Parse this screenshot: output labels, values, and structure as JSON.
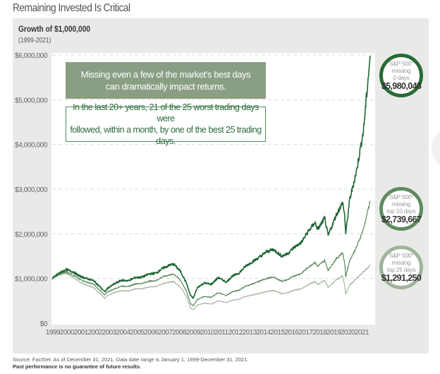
{
  "page_title": "Remaining Invested Is Critical",
  "subtitle": "Growth of $1,000,000",
  "date_range_label": "(1999-2021)",
  "callout_primary": [
    "Missing even a few of the market's best days",
    "can dramatically impact returns."
  ],
  "callout_secondary": [
    "In the last 20+ years, 21 of the 25 worst trading days were",
    "followed, within a month, by one of the best 25 trading days."
  ],
  "end_labels": [
    {
      "lines": [
        "S&P 500°",
        "missing",
        "0 days"
      ],
      "value": "$5,980,048",
      "color": "#276b36"
    },
    {
      "lines": [
        "S&P 500°",
        "missing",
        "top 10 days"
      ],
      "value": "$2,739,667",
      "color": "#5f8a61"
    },
    {
      "lines": [
        "S&P 500°",
        "missing",
        "top 25 days"
      ],
      "value": "$1,291,250",
      "color": "#9fb39b"
    }
  ],
  "footnote_source": "Source: FactSet. As of December 31, 2021. Data date range is January 1, 1999-December 31, 2021.",
  "footnote_disclaimer": "Past performance is no guarantee of future results.",
  "chart_data": {
    "type": "line",
    "title": "Growth of $1,000,000",
    "subtitle": "(1999-2021)",
    "xlabel": "",
    "ylabel": "",
    "ylim": [
      0,
      6000000
    ],
    "xlim": [
      1999,
      2022
    ],
    "y_ticks": [
      0,
      1000000,
      2000000,
      3000000,
      4000000,
      5000000,
      6000000
    ],
    "y_tick_labels": [
      "$0",
      "$1,000,000",
      "$2,000,000",
      "$3,000,000",
      "$4,000,000",
      "$5,000,000",
      "$6,000,000"
    ],
    "x_tick_labels": [
      "1999",
      "2000",
      "2001",
      "2002",
      "2003",
      "2004",
      "2005",
      "2006",
      "2007",
      "2008",
      "2009",
      "2010",
      "2011",
      "2012",
      "2013",
      "2014",
      "2015",
      "2016",
      "2017",
      "2018",
      "2019",
      "2020",
      "2021"
    ],
    "grid": true,
    "x": [
      1999.0,
      1999.5,
      2000.0,
      2000.5,
      2001.0,
      2001.5,
      2002.0,
      2002.5,
      2002.8,
      2003.0,
      2003.5,
      2004.0,
      2004.5,
      2005.0,
      2005.5,
      2006.0,
      2006.5,
      2007.0,
      2007.5,
      2007.8,
      2008.3,
      2008.7,
      2009.0,
      2009.2,
      2009.5,
      2010.0,
      2010.5,
      2011.0,
      2011.6,
      2012.0,
      2012.5,
      2013.0,
      2013.5,
      2014.0,
      2014.5,
      2015.0,
      2015.6,
      2016.0,
      2016.5,
      2017.0,
      2017.5,
      2018.0,
      2018.2,
      2018.7,
      2018.95,
      2019.5,
      2020.0,
      2020.15,
      2020.22,
      2020.5,
      2021.0,
      2021.5,
      2021.99
    ],
    "series": [
      {
        "name": "S&P 500 missing 0 days",
        "color": "#1e6634",
        "end_value": 5980048,
        "values": [
          1000000,
          1120000,
          1200000,
          1150000,
          1050000,
          1000000,
          950000,
          800000,
          700000,
          780000,
          880000,
          960000,
          950000,
          1020000,
          1030000,
          1100000,
          1120000,
          1230000,
          1300000,
          1320000,
          1150000,
          900000,
          620000,
          560000,
          800000,
          900000,
          870000,
          1020000,
          920000,
          1050000,
          1120000,
          1280000,
          1380000,
          1480000,
          1600000,
          1650000,
          1500000,
          1550000,
          1700000,
          1800000,
          2050000,
          2250000,
          2100000,
          2350000,
          1950000,
          2400000,
          2700000,
          2400000,
          2000000,
          2750000,
          3400000,
          4300000,
          5980048
        ]
      },
      {
        "name": "S&P 500 missing top 10 days",
        "color": "#5b8a5e",
        "end_value": 2739667,
        "values": [
          1000000,
          1100000,
          1150000,
          1080000,
          980000,
          920000,
          870000,
          720000,
          630000,
          700000,
          770000,
          830000,
          820000,
          880000,
          890000,
          940000,
          950000,
          1040000,
          1080000,
          1100000,
          950000,
          720000,
          440000,
          390000,
          530000,
          600000,
          580000,
          680000,
          620000,
          700000,
          740000,
          830000,
          880000,
          940000,
          1000000,
          1030000,
          940000,
          970000,
          1060000,
          1110000,
          1250000,
          1360000,
          1270000,
          1410000,
          1180000,
          1430000,
          1580000,
          1330000,
          1050000,
          1400000,
          1700000,
          2100000,
          2739667
        ]
      },
      {
        "name": "S&P 500 missing top 25 days",
        "color": "#a7b8a3",
        "end_value": 1291250,
        "values": [
          1000000,
          1080000,
          1120000,
          1030000,
          920000,
          850000,
          800000,
          650000,
          560000,
          620000,
          680000,
          730000,
          720000,
          770000,
          770000,
          810000,
          820000,
          890000,
          920000,
          930000,
          800000,
          600000,
          340000,
          300000,
          400000,
          450000,
          430000,
          500000,
          460000,
          510000,
          540000,
          600000,
          630000,
          670000,
          710000,
          730000,
          660000,
          680000,
          740000,
          770000,
          860000,
          930000,
          870000,
          960000,
          800000,
          960000,
          1060000,
          850000,
          650000,
          850000,
          1000000,
          1150000,
          1291250
        ]
      }
    ],
    "legend": "end-of-line circle labels, right"
  }
}
